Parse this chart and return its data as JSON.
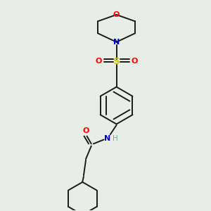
{
  "bg_color": "#e8ede8",
  "bond_color": "#1a1a1a",
  "colors": {
    "O": "#ff0000",
    "N": "#0000cc",
    "S": "#cccc00",
    "C": "#1a1a1a",
    "H": "#6aacac"
  }
}
